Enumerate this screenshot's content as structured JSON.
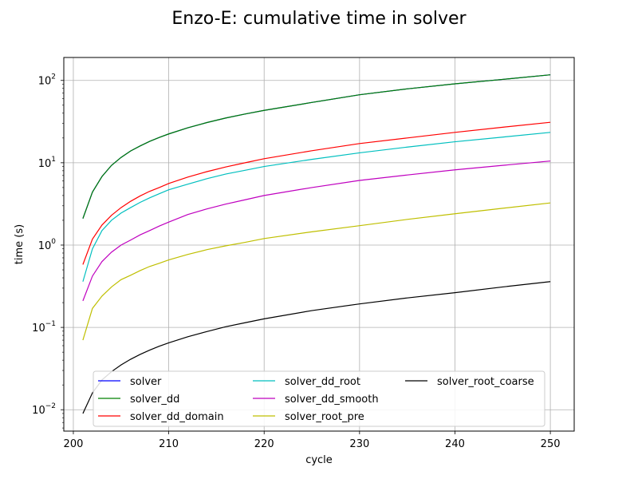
{
  "chart_data": {
    "type": "line",
    "title": "Enzo-E: cumulative time in solver",
    "xlabel": "cycle",
    "ylabel": "time (s)",
    "xlim": [
      199,
      252.5
    ],
    "ylim": [
      0.0055,
      190
    ],
    "yscale": "log",
    "grid": true,
    "legend_position": "lower-center",
    "legend_columns": 3,
    "x_ticks": [
      200,
      210,
      220,
      230,
      240,
      250
    ],
    "x_tick_labels": [
      "200",
      "210",
      "220",
      "230",
      "240",
      "250"
    ],
    "y_ticks": [
      0.01,
      0.1,
      1,
      10,
      100
    ],
    "y_tick_base": [
      "10",
      "10",
      "10",
      "10",
      "10"
    ],
    "y_tick_exp": [
      "−2",
      "−1",
      "0",
      "1",
      "2"
    ],
    "x": [
      201,
      202,
      203,
      204,
      205,
      206,
      207,
      208,
      209,
      210,
      212,
      214,
      216,
      218,
      220,
      225,
      230,
      235,
      240,
      245,
      250
    ],
    "series": [
      {
        "name": "solver",
        "color": "#0000ff",
        "values": [
          2.1,
          4.4,
          6.8,
          9.3,
          11.6,
          13.9,
          16.0,
          18.2,
          20.3,
          22.4,
          26.6,
          30.8,
          35.0,
          39.1,
          43.3,
          54.0,
          67.0,
          79.0,
          91.0,
          103.0,
          117.0
        ]
      },
      {
        "name": "solver_dd",
        "color": "#008000",
        "values": [
          2.1,
          4.4,
          6.8,
          9.3,
          11.6,
          13.9,
          16.0,
          18.2,
          20.3,
          22.4,
          26.6,
          30.8,
          35.0,
          39.1,
          43.3,
          54.0,
          67.0,
          79.0,
          91.0,
          103.0,
          117.0
        ]
      },
      {
        "name": "solver_dd_domain",
        "color": "#ff0000",
        "values": [
          0.58,
          1.18,
          1.75,
          2.3,
          2.85,
          3.4,
          3.95,
          4.5,
          5.0,
          5.6,
          6.7,
          7.8,
          8.9,
          10.0,
          11.2,
          14.0,
          17.1,
          20.0,
          23.4,
          27.0,
          31.0
        ]
      },
      {
        "name": "solver_dd_root",
        "color": "#00bfbf",
        "values": [
          0.36,
          0.9,
          1.5,
          2.0,
          2.45,
          2.85,
          3.3,
          3.75,
          4.2,
          4.7,
          5.5,
          6.4,
          7.3,
          8.1,
          9.0,
          11.0,
          13.2,
          15.5,
          18.0,
          20.5,
          23.4
        ]
      },
      {
        "name": "solver_dd_smooth",
        "color": "#bf00bf",
        "values": [
          0.21,
          0.42,
          0.63,
          0.82,
          1.0,
          1.15,
          1.33,
          1.5,
          1.7,
          1.9,
          2.35,
          2.75,
          3.15,
          3.55,
          4.0,
          5.0,
          6.1,
          7.1,
          8.2,
          9.3,
          10.5
        ]
      },
      {
        "name": "solver_root_pre",
        "color": "#bfbf00",
        "values": [
          0.07,
          0.17,
          0.24,
          0.31,
          0.38,
          0.43,
          0.49,
          0.55,
          0.6,
          0.66,
          0.77,
          0.88,
          0.98,
          1.08,
          1.2,
          1.45,
          1.72,
          2.05,
          2.4,
          2.8,
          3.25
        ]
      },
      {
        "name": "solver_root_coarse",
        "color": "#000000",
        "values": [
          0.009,
          0.016,
          0.023,
          0.029,
          0.035,
          0.041,
          0.047,
          0.053,
          0.059,
          0.065,
          0.077,
          0.089,
          0.102,
          0.114,
          0.127,
          0.16,
          0.193,
          0.228,
          0.264,
          0.31,
          0.36
        ]
      }
    ]
  }
}
